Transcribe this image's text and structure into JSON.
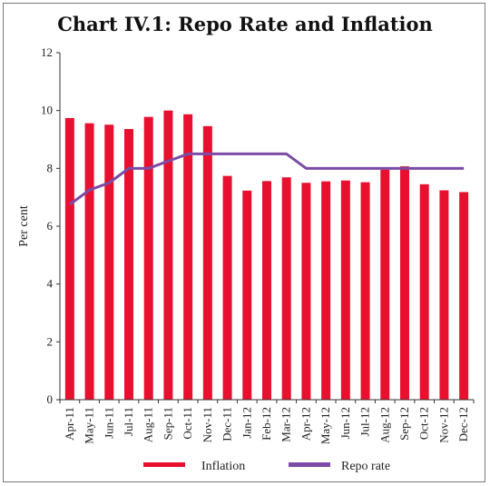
{
  "chart_data": {
    "type": "bar",
    "title": "Chart IV.1: Repo Rate and Inflation",
    "ylabel": "Per cent",
    "xlabel": "",
    "ylim": [
      0,
      12
    ],
    "yticks": [
      0,
      2,
      4,
      6,
      8,
      10,
      12
    ],
    "categories": [
      "Apr-11",
      "May-11",
      "Jun-11",
      "Jul-11",
      "Aug-11",
      "Sep-11",
      "Oct-11",
      "Nov-11",
      "Dec-11",
      "Jan-12",
      "Feb-12",
      "Mar-12",
      "Apr-12",
      "May-12",
      "Jun-12",
      "Jul-12",
      "Aug-12",
      "Sep-12",
      "Oct-12",
      "Nov-12",
      "Dec-12"
    ],
    "series": [
      {
        "name": "Inflation",
        "type": "bar",
        "color": "#e8102e",
        "values": [
          9.74,
          9.56,
          9.51,
          9.36,
          9.78,
          10.0,
          9.87,
          9.46,
          7.74,
          7.23,
          7.56,
          7.69,
          7.5,
          7.55,
          7.58,
          7.52,
          7.95,
          8.07,
          7.45,
          7.24,
          7.18
        ]
      },
      {
        "name": "Repo rate",
        "type": "line",
        "color": "#7b4ba6",
        "values": [
          6.75,
          7.25,
          7.5,
          8.0,
          8.0,
          8.25,
          8.5,
          8.5,
          8.5,
          8.5,
          8.5,
          8.5,
          8.0,
          8.0,
          8.0,
          8.0,
          8.0,
          8.0,
          8.0,
          8.0,
          8.0
        ]
      }
    ],
    "legend": "bottom",
    "grid": false
  }
}
